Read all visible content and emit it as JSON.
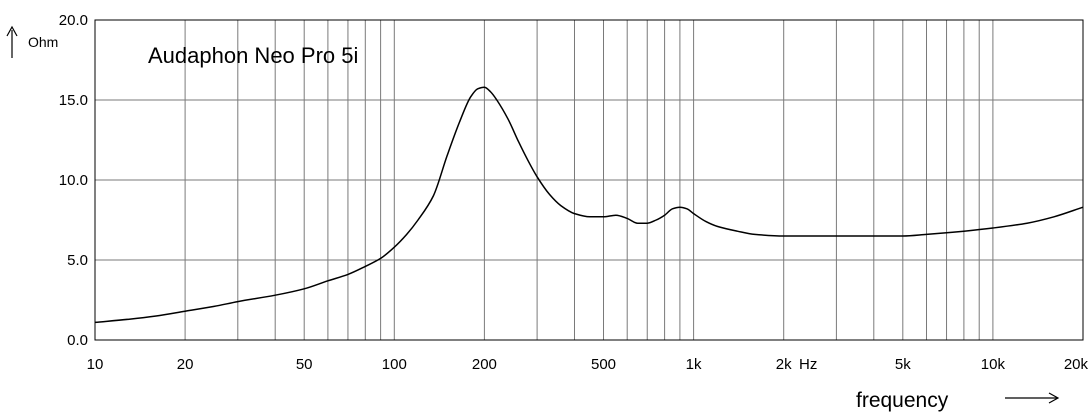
{
  "chart_data": {
    "type": "line",
    "title": "Audaphon Neo Pro 5i",
    "xlabel": "frequency",
    "ylabel": "Ohm",
    "x_unit": "Hz",
    "x_scale": "log",
    "xlim": [
      10,
      20000
    ],
    "ylim": [
      0,
      20
    ],
    "grid": true,
    "x_ticks": [
      {
        "value": 10,
        "label": "10"
      },
      {
        "value": 20,
        "label": "20"
      },
      {
        "value": 50,
        "label": "50"
      },
      {
        "value": 100,
        "label": "100"
      },
      {
        "value": 200,
        "label": "200"
      },
      {
        "value": 500,
        "label": "500"
      },
      {
        "value": 1000,
        "label": "1k"
      },
      {
        "value": 2000,
        "label": "2k"
      },
      {
        "value": 5000,
        "label": "5k"
      },
      {
        "value": 10000,
        "label": "10k"
      },
      {
        "value": 20000,
        "label": "20k"
      }
    ],
    "y_ticks": [
      {
        "value": 0,
        "label": "0.0"
      },
      {
        "value": 5,
        "label": "5.0"
      },
      {
        "value": 10,
        "label": "10.0"
      },
      {
        "value": 15,
        "label": "15.0"
      },
      {
        "value": 20,
        "label": "20.0"
      }
    ],
    "series": [
      {
        "x": [
          10,
          13,
          16,
          20,
          25,
          30,
          40,
          50,
          60,
          70,
          80,
          90,
          100,
          110,
          120,
          135,
          150,
          165,
          180,
          190,
          200,
          210,
          220,
          240,
          260,
          280,
          300,
          330,
          360,
          400,
          450,
          500,
          550,
          600,
          650,
          700,
          750,
          800,
          850,
          900,
          950,
          1000,
          1100,
          1200,
          1400,
          1600,
          2000,
          3000,
          4000,
          5000,
          6000,
          7000,
          8000,
          10000,
          13000,
          16000,
          20000
        ],
        "y": [
          1.1,
          1.3,
          1.5,
          1.8,
          2.1,
          2.4,
          2.8,
          3.2,
          3.7,
          4.1,
          4.6,
          5.1,
          5.8,
          6.6,
          7.5,
          9.0,
          11.5,
          13.6,
          15.2,
          15.7,
          15.8,
          15.5,
          15.0,
          13.8,
          12.4,
          11.2,
          10.2,
          9.1,
          8.4,
          7.9,
          7.7,
          7.7,
          7.8,
          7.6,
          7.3,
          7.3,
          7.5,
          7.8,
          8.2,
          8.3,
          8.2,
          7.9,
          7.4,
          7.1,
          6.8,
          6.6,
          6.5,
          6.5,
          6.5,
          6.5,
          6.6,
          6.7,
          6.8,
          7.0,
          7.3,
          7.7,
          8.3
        ]
      }
    ]
  }
}
